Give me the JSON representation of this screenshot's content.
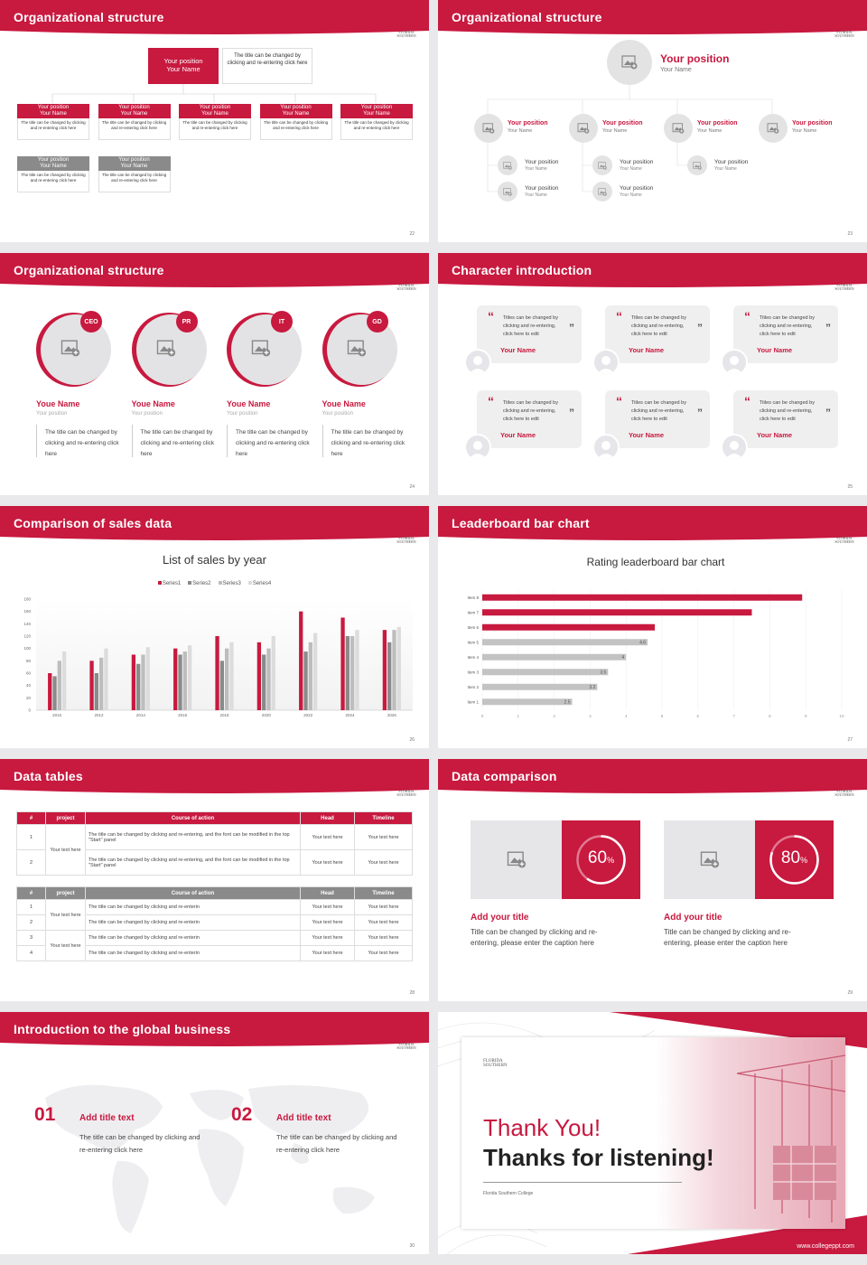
{
  "slides": {
    "s22": {
      "title": "Organizational structure",
      "page": "22",
      "top": {
        "position": "Your position",
        "name": "Your Name",
        "desc": "The title can be changed by clicking and re-entering click here"
      },
      "row1": [
        {
          "position": "Your position",
          "name": "Your Name",
          "desc": "The title can be changed by clicking and re-entering click here"
        },
        {
          "position": "Your position",
          "name": "Your Name",
          "desc": "The title can be changed by clicking and re-entering click here"
        },
        {
          "position": "Your position",
          "name": "Your Name",
          "desc": "The title can be changed by clicking and re-entering click here"
        },
        {
          "position": "Your position",
          "name": "Your Name",
          "desc": "The title can be changed by clicking and re-entering click here"
        },
        {
          "position": "Your position",
          "name": "Your Name",
          "desc": "The title can be changed by clicking and re-entering click here"
        }
      ],
      "row2": [
        {
          "position": "Your position",
          "name": "Your Name",
          "desc": "The title can be changed by clicking and re-entering click here"
        },
        {
          "position": "Your position",
          "name": "Your Name",
          "desc": "The title can be changed by clicking and re-entering click here"
        }
      ]
    },
    "s23": {
      "title": "Organizational structure",
      "page": "23",
      "top": {
        "position": "Your position",
        "name": "Your Name"
      },
      "level1": [
        {
          "position": "Your position",
          "name": "Your Name"
        },
        {
          "position": "Your position",
          "name": "Your Name"
        },
        {
          "position": "Your position",
          "name": "Your Name"
        },
        {
          "position": "Your position",
          "name": "Your Name"
        }
      ],
      "level2": [
        {
          "position": "Your position",
          "name": "Your Name"
        },
        {
          "position": "Your position",
          "name": "Your Name"
        },
        {
          "position": "Your position",
          "name": "Your Name"
        },
        {
          "position": "Your position",
          "name": "Your Name"
        },
        {
          "position": "Your position",
          "name": "Your Name"
        }
      ]
    },
    "s24": {
      "title": "Organizational structure",
      "page": "24",
      "people": [
        {
          "badge": "CEO",
          "name": "Youe Name",
          "position": "Your position",
          "desc": "The title can be changed by clicking and re-entering click here"
        },
        {
          "badge": "PR",
          "name": "Youe Name",
          "position": "Your position",
          "desc": "The title can be changed by clicking and re-entering click here"
        },
        {
          "badge": "IT",
          "name": "Youe Name",
          "position": "Your position",
          "desc": "The title can be changed by clicking and re-entering click here"
        },
        {
          "badge": "GD",
          "name": "Youe Name",
          "position": "Your position",
          "desc": "The title can be changed by clicking and re-entering click here"
        }
      ]
    },
    "s25": {
      "title": "Character introduction",
      "page": "25",
      "quote": "Titles can be changed by clicking and re-entering, click here to edit",
      "name": "Your Name"
    },
    "s26": {
      "title": "Comparison of sales data",
      "page": "26"
    },
    "s27": {
      "title": "Leaderboard bar chart",
      "page": "27"
    },
    "s28": {
      "title": "Data tables",
      "page": "28",
      "t1": {
        "headers": [
          "#",
          "project",
          "Course of action",
          "Head",
          "Timeline"
        ],
        "rows": [
          {
            "n": "1",
            "text": "The title can be changed by clicking and re-entering, and the font can be modified in the top \"Start\" panel",
            "head": "Your text here",
            "time": "Your text here"
          },
          {
            "n": "2",
            "text": "The title can be changed by clicking and re-entering, and the font can be modified in the top \"Start\" panel",
            "head": "Your text here",
            "time": "Your text here"
          }
        ],
        "project": "Your text here"
      },
      "t2": {
        "headers": [
          "#",
          "project",
          "Course of action",
          "Head",
          "Timeline"
        ],
        "rows": [
          {
            "n": "1",
            "text": "The title can be changed by clicking and re-enterin",
            "head": "Your text here",
            "time": "Your text here"
          },
          {
            "n": "2",
            "text": "The title can be changed by clicking and re-enterin",
            "head": "Your text here",
            "time": "Your text here"
          },
          {
            "n": "3",
            "text": "The title can be changed by clicking and re-enterin",
            "head": "Your text here",
            "time": "Your text here"
          },
          {
            "n": "4",
            "text": "The title can be changed by clicking and re-enterin",
            "head": "Your text here",
            "time": "Your text here"
          }
        ],
        "project1": "Your text here",
        "project2": "Your text here"
      }
    },
    "s29": {
      "title": "Data comparison",
      "page": "29",
      "items": [
        {
          "pct": "60",
          "unit": "%",
          "value": 0.6,
          "title": "Add your title",
          "desc": "Title can be changed by clicking and re-entering, please enter the caption here"
        },
        {
          "pct": "80",
          "unit": "%",
          "value": 0.8,
          "title": "Add your title",
          "desc": "Title can be changed by clicking and re-entering, please enter the caption here"
        }
      ]
    },
    "s30": {
      "title": "Introduction to the global business",
      "page": "30",
      "items": [
        {
          "num": "01",
          "title": "Add title text",
          "desc": "The title can be changed by clicking and re-entering click here"
        },
        {
          "num": "02",
          "title": "Add title text",
          "desc": "The title can be changed by clicking and re-entering click here"
        }
      ]
    },
    "s31": {
      "thanks": "Thank You!",
      "listening": "Thanks for listening!",
      "college": "Florida Southern College",
      "url": "www.collegeppt.com"
    }
  },
  "logo": {
    "line1": "FLORIDA",
    "line2": "SOUTHERN"
  },
  "chart_data": [
    {
      "type": "bar",
      "title": "List of sales by year",
      "categories": [
        "2010",
        "2012",
        "2014",
        "2016",
        "2018",
        "2020",
        "2022",
        "2024",
        "2026"
      ],
      "series": [
        {
          "name": "Series1",
          "values": [
            60,
            80,
            90,
            100,
            120,
            110,
            160,
            150,
            130
          ]
        },
        {
          "name": "Series2",
          "values": [
            55,
            60,
            75,
            90,
            80,
            90,
            95,
            120,
            110
          ]
        },
        {
          "name": "Series3",
          "values": [
            80,
            85,
            90,
            95,
            100,
            100,
            110,
            120,
            130
          ]
        },
        {
          "name": "Series4",
          "values": [
            95,
            100,
            102,
            105,
            110,
            120,
            125,
            130,
            135
          ]
        }
      ],
      "ylim": [
        0,
        180
      ],
      "yticks": [
        0,
        20,
        40,
        60,
        80,
        100,
        120,
        140,
        160,
        180
      ],
      "legend": "top",
      "colors": [
        "#c8193f",
        "#8a8a8a",
        "#bdbdbd",
        "#dcdcdc"
      ]
    },
    {
      "type": "bar",
      "orientation": "horizontal",
      "title": "Rating leaderboard bar chart",
      "categories": [
        "Item 1",
        "Item 2",
        "Item 3",
        "Item 4",
        "Item 5",
        "Item 6",
        "Item 7",
        "Item 8"
      ],
      "values": [
        2.5,
        3.2,
        3.5,
        4,
        4.6,
        4.8,
        7.5,
        8.9
      ],
      "labels": [
        "2.5",
        "3.2",
        "3.5",
        "4",
        "4.6",
        "",
        "",
        ""
      ],
      "xlim": [
        0,
        10
      ],
      "xticks": [
        0,
        1,
        2,
        3,
        4,
        5,
        6,
        7,
        8,
        9,
        10
      ],
      "highlight": [
        5,
        6,
        7
      ]
    }
  ]
}
